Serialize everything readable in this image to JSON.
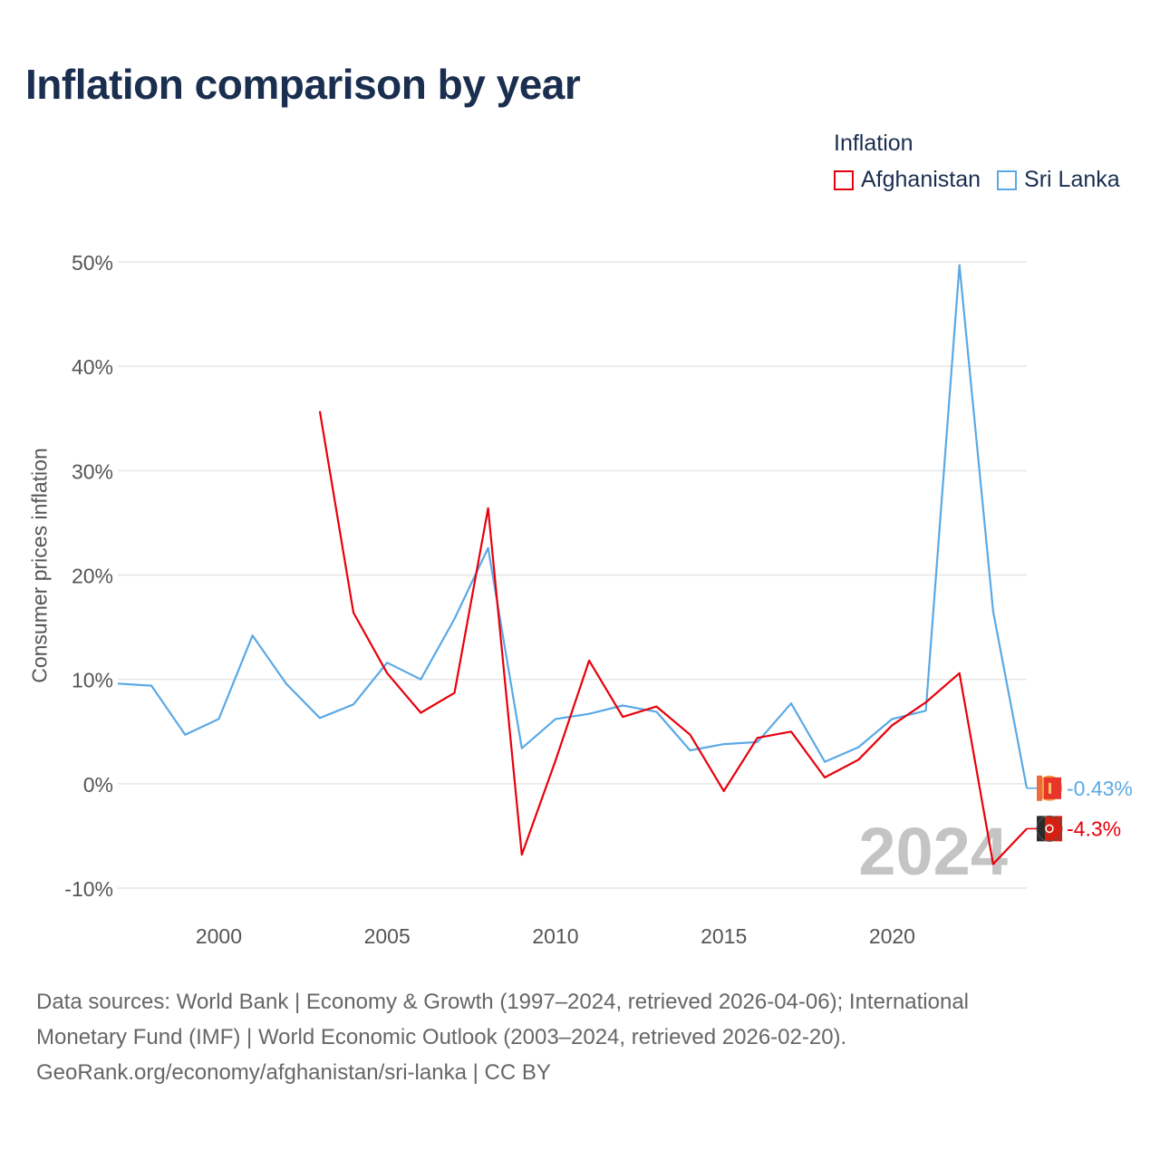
{
  "title": "Inflation comparison by year",
  "legend": {
    "title": "Inflation",
    "items": [
      {
        "label": "Afghanistan",
        "color": "#e8000b"
      },
      {
        "label": "Sri Lanka",
        "color": "#5aa9e6"
      }
    ]
  },
  "source": {
    "line1": "Data sources: World Bank | Economy & Growth (1997–2024, retrieved 2026-04-06); International",
    "line2": "Monetary Fund (IMF) | World Economic Outlook (2003–2024, retrieved 2026-02-20).",
    "line3": "GeoRank.org/economy/afghanistan/sri-lanka | CC BY"
  },
  "chart_data": {
    "type": "line",
    "title": "Inflation comparison by year",
    "ylabel": "Consumer prices inflation",
    "xlabel": "",
    "xlim": [
      1997,
      2024
    ],
    "ylim": [
      -10,
      50
    ],
    "y_ticks": [
      50,
      40,
      30,
      20,
      10,
      0,
      -10
    ],
    "y_tick_labels": [
      "50%",
      "40%",
      "30%",
      "20%",
      "10%",
      "0%",
      "-10%"
    ],
    "x_ticks": [
      2000,
      2005,
      2010,
      2015,
      2020
    ],
    "x_tick_labels": [
      "2000",
      "2005",
      "2010",
      "2015",
      "2020"
    ],
    "year_watermark": "2024",
    "grid": true,
    "series": [
      {
        "name": "Afghanistan",
        "color": "#e8000b",
        "end_label": "-4.3%",
        "x": [
          2003,
          2004,
          2005,
          2006,
          2007,
          2008,
          2009,
          2010,
          2011,
          2012,
          2013,
          2014,
          2015,
          2016,
          2017,
          2018,
          2019,
          2020,
          2021,
          2022,
          2023,
          2024
        ],
        "values": [
          35.7,
          16.4,
          10.6,
          6.8,
          8.7,
          26.4,
          -6.8,
          2.2,
          11.8,
          6.4,
          7.4,
          4.7,
          -0.7,
          4.4,
          5.0,
          0.6,
          2.3,
          5.6,
          7.8,
          10.6,
          -7.7,
          -4.3
        ]
      },
      {
        "name": "Sri Lanka",
        "color": "#5aa9e6",
        "end_label": "-0.43%",
        "x": [
          1997,
          1998,
          1999,
          2000,
          2001,
          2002,
          2003,
          2004,
          2005,
          2006,
          2007,
          2008,
          2009,
          2010,
          2011,
          2012,
          2013,
          2014,
          2015,
          2016,
          2017,
          2018,
          2019,
          2020,
          2021,
          2022,
          2023,
          2024
        ],
        "values": [
          9.6,
          9.4,
          4.7,
          6.2,
          14.2,
          9.6,
          6.3,
          7.6,
          11.6,
          10.0,
          15.8,
          22.6,
          3.4,
          6.2,
          6.7,
          7.5,
          6.9,
          3.2,
          3.8,
          4.0,
          7.7,
          2.1,
          3.5,
          6.2,
          7.0,
          49.7,
          16.5,
          -0.43
        ]
      }
    ]
  }
}
